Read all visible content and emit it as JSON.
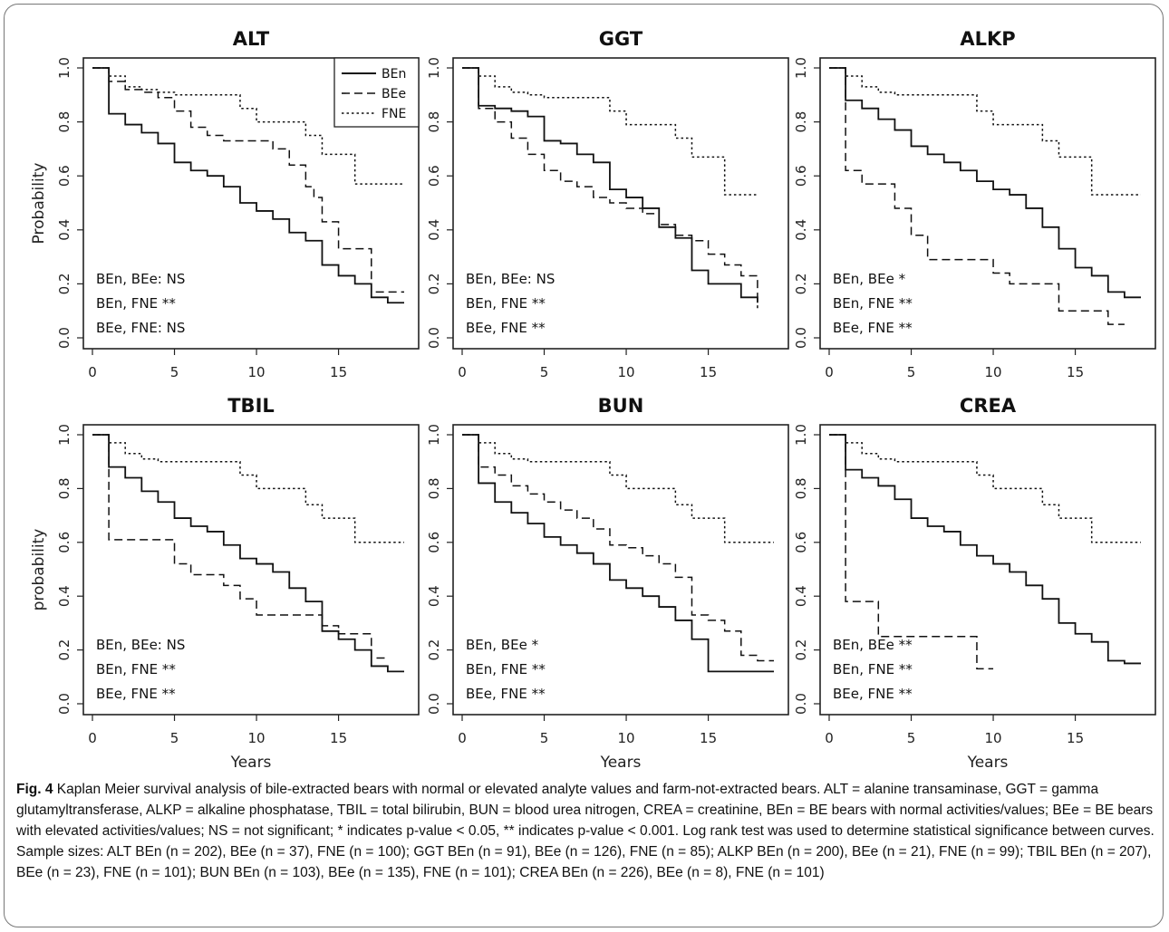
{
  "chart_data": [
    {
      "type": "line",
      "step": true,
      "title": "ALT",
      "ylabel": "Probability",
      "xlabel": "",
      "xlim": [
        0,
        19
      ],
      "ylim": [
        0,
        1
      ],
      "xticks": [
        "0",
        "5",
        "10",
        "15"
      ],
      "yticks": [
        "0.0",
        "0.2",
        "0.4",
        "0.6",
        "0.8",
        "1.0"
      ],
      "legend": {
        "position": "top-right",
        "entries": [
          {
            "label": "BEn",
            "style": "solid"
          },
          {
            "label": "BEe",
            "style": "dashed"
          },
          {
            "label": "FNE",
            "style": "dotted"
          }
        ]
      },
      "annotations": [
        "BEn, BEe: NS",
        "BEn, FNE **",
        "BEe, FNE: NS"
      ],
      "series": [
        {
          "name": "BEn",
          "style": "solid",
          "x": [
            0,
            1,
            2,
            3,
            4,
            5,
            6,
            7,
            8,
            9,
            10,
            11,
            12,
            13,
            14,
            15,
            16,
            17,
            18,
            19
          ],
          "y": [
            1.0,
            0.83,
            0.79,
            0.76,
            0.72,
            0.65,
            0.62,
            0.6,
            0.56,
            0.5,
            0.47,
            0.44,
            0.39,
            0.36,
            0.27,
            0.23,
            0.2,
            0.15,
            0.13,
            0.13
          ]
        },
        {
          "name": "BEe",
          "style": "dashed",
          "x": [
            0,
            1,
            2,
            3,
            4,
            5,
            6,
            7,
            8,
            9,
            10,
            11,
            12,
            13,
            13.5,
            14,
            15,
            16,
            17,
            18,
            19
          ],
          "y": [
            1.0,
            0.95,
            0.92,
            0.91,
            0.89,
            0.84,
            0.78,
            0.75,
            0.73,
            0.73,
            0.73,
            0.7,
            0.64,
            0.56,
            0.52,
            0.43,
            0.33,
            0.33,
            0.17,
            0.17,
            0.17
          ]
        },
        {
          "name": "FNE",
          "style": "dotted",
          "x": [
            0,
            1,
            2,
            3,
            4,
            5,
            6,
            7,
            8,
            9,
            10,
            11,
            12,
            13,
            14,
            15,
            16,
            17,
            18,
            19
          ],
          "y": [
            1.0,
            0.97,
            0.93,
            0.92,
            0.91,
            0.9,
            0.9,
            0.9,
            0.9,
            0.85,
            0.8,
            0.8,
            0.8,
            0.75,
            0.68,
            0.68,
            0.57,
            0.57,
            0.57,
            0.57
          ]
        }
      ]
    },
    {
      "type": "line",
      "step": true,
      "title": "GGT",
      "ylabel": "",
      "xlabel": "",
      "xlim": [
        0,
        19
      ],
      "ylim": [
        0,
        1
      ],
      "xticks": [
        "0",
        "5",
        "10",
        "15"
      ],
      "yticks": [
        "0.0",
        "0.2",
        "0.4",
        "0.6",
        "0.8",
        "1.0"
      ],
      "annotations": [
        "BEn, BEe: NS",
        "BEn, FNE **",
        "BEe, FNE **"
      ],
      "series": [
        {
          "name": "BEn",
          "style": "solid",
          "x": [
            0,
            1,
            2,
            3,
            4,
            5,
            6,
            7,
            8,
            9,
            10,
            11,
            12,
            13,
            14,
            15,
            16,
            17,
            18
          ],
          "y": [
            1.0,
            0.86,
            0.85,
            0.84,
            0.82,
            0.73,
            0.72,
            0.68,
            0.65,
            0.55,
            0.52,
            0.48,
            0.41,
            0.37,
            0.25,
            0.2,
            0.2,
            0.15,
            0.13
          ]
        },
        {
          "name": "BEe",
          "style": "dashed",
          "x": [
            0,
            1,
            2,
            3,
            4,
            5,
            6,
            7,
            8,
            9,
            10,
            11,
            12,
            13,
            14,
            15,
            16,
            17,
            18
          ],
          "y": [
            1.0,
            0.85,
            0.8,
            0.74,
            0.68,
            0.62,
            0.58,
            0.56,
            0.52,
            0.5,
            0.48,
            0.46,
            0.42,
            0.38,
            0.36,
            0.31,
            0.27,
            0.23,
            0.11
          ]
        },
        {
          "name": "FNE",
          "style": "dotted",
          "x": [
            0,
            1,
            2,
            3,
            4,
            5,
            6,
            7,
            8,
            9,
            10,
            11,
            12,
            13,
            14,
            15,
            16,
            17,
            18
          ],
          "y": [
            1.0,
            0.97,
            0.93,
            0.91,
            0.9,
            0.89,
            0.89,
            0.89,
            0.89,
            0.84,
            0.79,
            0.79,
            0.79,
            0.74,
            0.67,
            0.67,
            0.53,
            0.53,
            0.53
          ]
        }
      ]
    },
    {
      "type": "line",
      "step": true,
      "title": "ALKP",
      "ylabel": "",
      "xlabel": "",
      "xlim": [
        0,
        19
      ],
      "ylim": [
        0,
        1
      ],
      "xticks": [
        "0",
        "5",
        "10",
        "15"
      ],
      "yticks": [
        "0.0",
        "0.2",
        "0.4",
        "0.6",
        "0.8",
        "1.0"
      ],
      "annotations": [
        "BEn, BEe *",
        "BEn, FNE **",
        "BEe, FNE **"
      ],
      "series": [
        {
          "name": "BEn",
          "style": "solid",
          "x": [
            0,
            1,
            2,
            3,
            4,
            5,
            6,
            7,
            8,
            9,
            10,
            11,
            12,
            13,
            14,
            15,
            16,
            17,
            18,
            19
          ],
          "y": [
            1.0,
            0.88,
            0.85,
            0.81,
            0.77,
            0.71,
            0.68,
            0.65,
            0.62,
            0.58,
            0.55,
            0.53,
            0.48,
            0.41,
            0.33,
            0.26,
            0.23,
            0.17,
            0.15,
            0.15
          ]
        },
        {
          "name": "BEe",
          "style": "dashed",
          "x": [
            0,
            1,
            2,
            4,
            5,
            6,
            7,
            8,
            9,
            10,
            11,
            12,
            13,
            14,
            15,
            16,
            17,
            18
          ],
          "y": [
            1.0,
            0.62,
            0.57,
            0.48,
            0.38,
            0.29,
            0.29,
            0.29,
            0.29,
            0.24,
            0.2,
            0.2,
            0.2,
            0.1,
            0.1,
            0.1,
            0.05,
            0.05
          ]
        },
        {
          "name": "FNE",
          "style": "dotted",
          "x": [
            0,
            1,
            2,
            3,
            4,
            5,
            6,
            7,
            8,
            9,
            10,
            11,
            12,
            13,
            14,
            15,
            16,
            17,
            18,
            19
          ],
          "y": [
            1.0,
            0.97,
            0.93,
            0.91,
            0.9,
            0.9,
            0.9,
            0.9,
            0.9,
            0.84,
            0.79,
            0.79,
            0.79,
            0.73,
            0.67,
            0.67,
            0.53,
            0.53,
            0.53,
            0.53
          ]
        }
      ]
    },
    {
      "type": "line",
      "step": true,
      "title": "TBIL",
      "ylabel": "probability",
      "xlabel": "Years",
      "xlim": [
        0,
        19
      ],
      "ylim": [
        0,
        1
      ],
      "xticks": [
        "0",
        "5",
        "10",
        "15"
      ],
      "yticks": [
        "0.0",
        "0.2",
        "0.4",
        "0.6",
        "0.8",
        "1.0"
      ],
      "annotations": [
        "BEn, BEe: NS",
        "BEn, FNE **",
        "BEe, FNE **"
      ],
      "series": [
        {
          "name": "BEn",
          "style": "solid",
          "x": [
            0,
            1,
            2,
            3,
            4,
            5,
            6,
            7,
            8,
            9,
            10,
            11,
            12,
            13,
            14,
            15,
            16,
            17,
            18,
            19
          ],
          "y": [
            1.0,
            0.88,
            0.84,
            0.79,
            0.75,
            0.69,
            0.66,
            0.64,
            0.59,
            0.54,
            0.52,
            0.49,
            0.43,
            0.38,
            0.27,
            0.24,
            0.2,
            0.14,
            0.12,
            0.12
          ]
        },
        {
          "name": "BEe",
          "style": "dashed",
          "x": [
            0,
            1,
            2,
            3,
            4,
            5,
            6,
            7,
            8,
            9,
            10,
            11,
            12,
            13,
            14,
            15,
            16,
            17,
            18
          ],
          "y": [
            1.0,
            0.61,
            0.61,
            0.61,
            0.61,
            0.52,
            0.48,
            0.48,
            0.44,
            0.39,
            0.33,
            0.33,
            0.33,
            0.33,
            0.29,
            0.26,
            0.26,
            0.17,
            0.17
          ]
        },
        {
          "name": "FNE",
          "style": "dotted",
          "x": [
            0,
            1,
            2,
            3,
            4,
            5,
            6,
            7,
            8,
            9,
            10,
            11,
            12,
            13,
            14,
            15,
            16,
            17,
            18,
            19
          ],
          "y": [
            1.0,
            0.97,
            0.93,
            0.91,
            0.9,
            0.9,
            0.9,
            0.9,
            0.9,
            0.85,
            0.8,
            0.8,
            0.8,
            0.74,
            0.69,
            0.69,
            0.6,
            0.6,
            0.6,
            0.6
          ]
        }
      ]
    },
    {
      "type": "line",
      "step": true,
      "title": "BUN",
      "ylabel": "",
      "xlabel": "Years",
      "xlim": [
        0,
        19
      ],
      "ylim": [
        0,
        1
      ],
      "xticks": [
        "0",
        "5",
        "10",
        "15"
      ],
      "yticks": [
        "0.0",
        "0.2",
        "0.4",
        "0.6",
        "0.8",
        "1.0"
      ],
      "annotations": [
        "BEn, BEe *",
        "BEn, FNE **",
        "BEe, FNE **"
      ],
      "series": [
        {
          "name": "BEn",
          "style": "solid",
          "x": [
            0,
            1,
            2,
            3,
            4,
            5,
            6,
            7,
            8,
            9,
            10,
            11,
            12,
            13,
            14,
            15,
            16,
            17,
            18,
            19
          ],
          "y": [
            1.0,
            0.82,
            0.75,
            0.71,
            0.67,
            0.62,
            0.59,
            0.56,
            0.52,
            0.46,
            0.43,
            0.4,
            0.36,
            0.31,
            0.24,
            0.12,
            0.12,
            0.12,
            0.12,
            0.12
          ]
        },
        {
          "name": "BEe",
          "style": "dashed",
          "x": [
            0,
            1,
            2,
            3,
            4,
            5,
            6,
            7,
            8,
            9,
            10,
            11,
            12,
            13,
            14,
            15,
            16,
            17,
            18,
            19
          ],
          "y": [
            1.0,
            0.88,
            0.85,
            0.81,
            0.78,
            0.75,
            0.72,
            0.69,
            0.65,
            0.59,
            0.58,
            0.55,
            0.52,
            0.47,
            0.33,
            0.31,
            0.27,
            0.18,
            0.16,
            0.16
          ]
        },
        {
          "name": "FNE",
          "style": "dotted",
          "x": [
            0,
            1,
            2,
            3,
            4,
            5,
            6,
            7,
            8,
            9,
            10,
            11,
            12,
            13,
            14,
            15,
            16,
            17,
            18,
            19
          ],
          "y": [
            1.0,
            0.97,
            0.93,
            0.91,
            0.9,
            0.9,
            0.9,
            0.9,
            0.9,
            0.85,
            0.8,
            0.8,
            0.8,
            0.74,
            0.69,
            0.69,
            0.6,
            0.6,
            0.6,
            0.6
          ]
        }
      ]
    },
    {
      "type": "line",
      "step": true,
      "title": "CREA",
      "ylabel": "",
      "xlabel": "Years",
      "xlim": [
        0,
        19
      ],
      "ylim": [
        0,
        1
      ],
      "xticks": [
        "0",
        "5",
        "10",
        "15"
      ],
      "yticks": [
        "0.0",
        "0.2",
        "0.4",
        "0.6",
        "0.8",
        "1.0"
      ],
      "annotations": [
        "BEn, BEe **",
        "BEn, FNE **",
        "BEe, FNE **"
      ],
      "series": [
        {
          "name": "BEn",
          "style": "solid",
          "x": [
            0,
            1,
            2,
            3,
            4,
            5,
            6,
            7,
            8,
            9,
            10,
            11,
            12,
            13,
            14,
            15,
            16,
            17,
            18,
            19
          ],
          "y": [
            1.0,
            0.87,
            0.84,
            0.81,
            0.76,
            0.69,
            0.66,
            0.64,
            0.59,
            0.55,
            0.52,
            0.49,
            0.44,
            0.39,
            0.3,
            0.26,
            0.23,
            0.16,
            0.15,
            0.15
          ]
        },
        {
          "name": "BEe",
          "style": "dashed",
          "x": [
            0,
            1,
            3,
            4,
            5,
            6,
            7,
            8,
            9,
            10
          ],
          "y": [
            1.0,
            0.38,
            0.25,
            0.25,
            0.25,
            0.25,
            0.25,
            0.25,
            0.13,
            0.13
          ]
        },
        {
          "name": "FNE",
          "style": "dotted",
          "x": [
            0,
            1,
            2,
            3,
            4,
            5,
            6,
            7,
            8,
            9,
            10,
            11,
            12,
            13,
            14,
            15,
            16,
            17,
            18,
            19
          ],
          "y": [
            1.0,
            0.97,
            0.93,
            0.91,
            0.9,
            0.9,
            0.9,
            0.9,
            0.9,
            0.85,
            0.8,
            0.8,
            0.8,
            0.74,
            0.69,
            0.69,
            0.6,
            0.6,
            0.6,
            0.6
          ]
        }
      ]
    }
  ],
  "caption": {
    "label": "Fig. 4",
    "text": "Kaplan Meier survival analysis of bile-extracted bears with normal or elevated analyte values and farm-not-extracted bears. ALT = alanine transaminase, GGT = gamma glutamyltransferase, ALKP = alkaline phosphatase, TBIL = total bilirubin, BUN = blood urea nitrogen, CREA = creatinine, BEn = BE bears with normal activities/values; BEe = BE bears with elevated activities/values; NS = not significant; * indicates p-value < 0.05, ** indicates p-value < 0.001. Log rank test was used to determine statistical significance between curves. Sample sizes: ALT BEn (n = 202), BEe (n = 37), FNE (n = 100); GGT BEn (n = 91), BEe (n = 126), FNE (n = 85); ALKP BEn (n = 200), BEe (n = 21), FNE (n = 99); TBIL BEn (n = 207), BEe (n = 23), FNE (n = 101); BUN BEn (n = 103), BEe (n = 135), FNE (n = 101); CREA BEn (n = 226), BEe (n = 8), FNE (n = 101)"
  }
}
